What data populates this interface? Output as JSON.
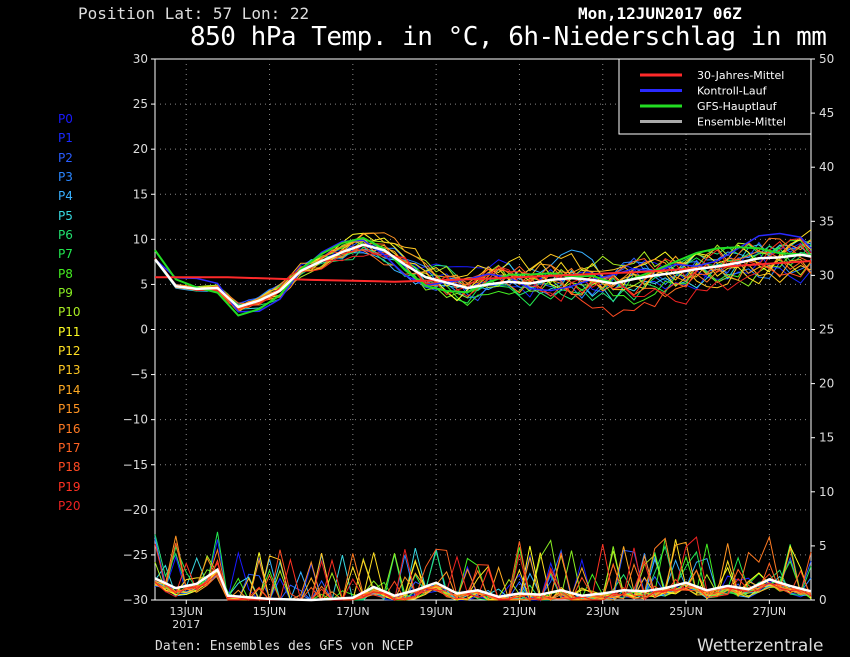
{
  "header": {
    "position": "Position  Lat: 57 Lon: 22",
    "date": "Mon,12JUN2017 06Z",
    "title": "850 hPa Temp. in °C, 6h-Niederschlag in mm"
  },
  "footer": {
    "source": "Daten: Ensembles des GFS von NCEP",
    "brand": "Wetterzentrale"
  },
  "members": [
    {
      "label": "P0",
      "color": "#1a1aff"
    },
    {
      "label": "P1",
      "color": "#1a2aff"
    },
    {
      "label": "P2",
      "color": "#2a5cff"
    },
    {
      "label": "P3",
      "color": "#2a86ff"
    },
    {
      "label": "P4",
      "color": "#38b0ff"
    },
    {
      "label": "P5",
      "color": "#38d8e0"
    },
    {
      "label": "P6",
      "color": "#22e070"
    },
    {
      "label": "P7",
      "color": "#22e850"
    },
    {
      "label": "P8",
      "color": "#44ee22"
    },
    {
      "label": "P9",
      "color": "#88ee22"
    },
    {
      "label": "P10",
      "color": "#aaee22"
    },
    {
      "label": "P11",
      "color": "#ffff22"
    },
    {
      "label": "P12",
      "color": "#ffe022"
    },
    {
      "label": "P13",
      "color": "#ffc822"
    },
    {
      "label": "P14",
      "color": "#ffaa22"
    },
    {
      "label": "P15",
      "color": "#ff9422"
    },
    {
      "label": "P16",
      "color": "#ff7a22"
    },
    {
      "label": "P17",
      "color": "#ff6222"
    },
    {
      "label": "P18",
      "color": "#ff4a22"
    },
    {
      "label": "P19",
      "color": "#ff3222"
    },
    {
      "label": "P20",
      "color": "#ee2222"
    }
  ],
  "chart_data": {
    "type": "line",
    "x_ticks": [
      "13JUN\n2017",
      "15JUN",
      "17JUN",
      "19JUN",
      "21JUN",
      "23JUN",
      "25JUN",
      "27JUN"
    ],
    "y_left": {
      "range": [
        -30,
        30
      ],
      "ticks": [
        -30,
        -25,
        -20,
        -15,
        -10,
        -5,
        0,
        5,
        10,
        15,
        20,
        25,
        30
      ]
    },
    "y_right": {
      "range": [
        0,
        50
      ],
      "ticks": [
        0,
        5,
        10,
        15,
        20,
        25,
        30,
        35,
        40,
        45,
        50
      ]
    },
    "grid": true,
    "legend_position": "top-right",
    "x_days_range": [
      12.25,
      28.0
    ],
    "legend": [
      {
        "name": "30-Jahres-Mittel",
        "color": "#ff2a2a"
      },
      {
        "name": "Kontroll-Lauf",
        "color": "#2a2aff"
      },
      {
        "name": "GFS-Hauptlauf",
        "color": "#22dd22"
      },
      {
        "name": "Ensemble-Mittel",
        "color": "#aaaaaa"
      }
    ],
    "series": [
      {
        "name": "30-Jahres-Mittel",
        "days": [
          12.25,
          14,
          16,
          18,
          20,
          22,
          24,
          26,
          28
        ],
        "temp": [
          5.8,
          5.8,
          5.5,
          5.3,
          5.6,
          6.0,
          6.4,
          7.0,
          7.6
        ]
      },
      {
        "name": "Ensemble-Mittel",
        "days": [
          12.25,
          12.75,
          13.25,
          13.75,
          14.25,
          14.75,
          15.25,
          15.75,
          16.25,
          16.75,
          17.25,
          17.75,
          18.25,
          18.75,
          19.25,
          19.75,
          20.25,
          20.75,
          21.25,
          21.75,
          22.25,
          22.75,
          23.25,
          23.75,
          24.25,
          24.75,
          25.25,
          25.75,
          26.25,
          26.75,
          27.25,
          27.75,
          28.0
        ],
        "temp": [
          7.8,
          4.8,
          4.5,
          4.6,
          2.5,
          3.2,
          4.3,
          6.5,
          7.6,
          8.6,
          9.4,
          8.8,
          7.2,
          5.8,
          5.2,
          4.6,
          5.0,
          5.3,
          5.1,
          5.5,
          5.7,
          5.5,
          5.1,
          5.6,
          6.0,
          6.3,
          6.7,
          7.0,
          7.4,
          7.9,
          8.0,
          8.3,
          8.1
        ]
      },
      {
        "name": "Ensemble-Mittel Niederschlag",
        "days": [
          12.25,
          12.75,
          13.25,
          13.75,
          14.0,
          15,
          16,
          17,
          17.5,
          18,
          18.5,
          19,
          19.5,
          20,
          20.5,
          21,
          21.5,
          22,
          22.5,
          23,
          23.5,
          24,
          24.5,
          25,
          25.5,
          26,
          26.5,
          27,
          27.5,
          28.0
        ],
        "precip": [
          2.0,
          1.1,
          1.5,
          2.8,
          0.4,
          0.1,
          0.0,
          0.2,
          1.2,
          0.4,
          0.9,
          1.6,
          0.6,
          0.9,
          0.3,
          0.6,
          0.5,
          0.9,
          0.4,
          0.6,
          0.9,
          0.8,
          1.1,
          1.6,
          0.9,
          1.3,
          1.0,
          1.9,
          1.3,
          0.8
        ]
      }
    ]
  }
}
